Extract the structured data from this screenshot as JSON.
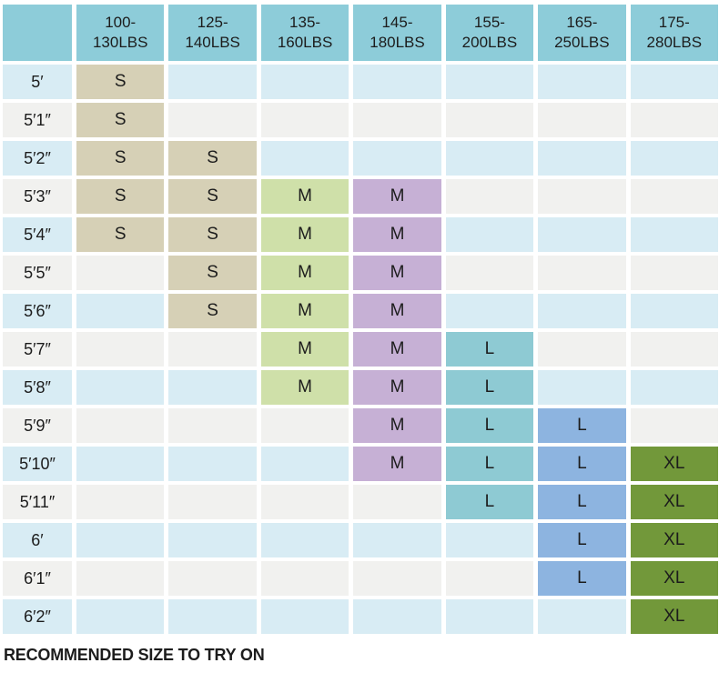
{
  "chart_data": {
    "type": "table",
    "title": "",
    "corner_label": "",
    "columns": [
      "100-130LBS",
      "125-140LBS",
      "135-160LBS",
      "145-180LBS",
      "155-200LBS",
      "165-250LBS",
      "175-280LBS"
    ],
    "rows": [
      {
        "label": "5′",
        "cells": [
          "S",
          "",
          "",
          "",
          "",
          "",
          ""
        ]
      },
      {
        "label": "5′1″",
        "cells": [
          "S",
          "",
          "",
          "",
          "",
          "",
          ""
        ]
      },
      {
        "label": "5′2″",
        "cells": [
          "S",
          "S",
          "",
          "",
          "",
          "",
          ""
        ]
      },
      {
        "label": "5′3″",
        "cells": [
          "S",
          "S",
          "M",
          "M",
          "",
          "",
          ""
        ]
      },
      {
        "label": "5′4″",
        "cells": [
          "S",
          "S",
          "M",
          "M",
          "",
          "",
          ""
        ]
      },
      {
        "label": "5′5″",
        "cells": [
          "",
          "S",
          "M",
          "M",
          "",
          "",
          ""
        ]
      },
      {
        "label": "5′6″",
        "cells": [
          "",
          "S",
          "M",
          "M",
          "",
          "",
          ""
        ]
      },
      {
        "label": "5′7″",
        "cells": [
          "",
          "",
          "M",
          "M",
          "L",
          "",
          ""
        ]
      },
      {
        "label": "5′8″",
        "cells": [
          "",
          "",
          "M",
          "M",
          "L",
          "",
          ""
        ]
      },
      {
        "label": "5′9″",
        "cells": [
          "",
          "",
          "",
          "M",
          "L",
          "L",
          ""
        ]
      },
      {
        "label": "5′10″",
        "cells": [
          "",
          "",
          "",
          "M",
          "L",
          "L",
          "XL"
        ]
      },
      {
        "label": "5′11″",
        "cells": [
          "",
          "",
          "",
          "",
          "L",
          "L",
          "XL"
        ]
      },
      {
        "label": "6′",
        "cells": [
          "",
          "",
          "",
          "",
          "",
          "L",
          "XL"
        ]
      },
      {
        "label": "6′1″",
        "cells": [
          "",
          "",
          "",
          "",
          "",
          "L",
          "XL"
        ]
      },
      {
        "label": "6′2″",
        "cells": [
          "",
          "",
          "",
          "",
          "",
          "",
          "XL"
        ]
      }
    ],
    "footer_note": "RECOMMENDED SIZE TO TRY ON",
    "legend_position": "none",
    "grid": "white-gaps"
  },
  "colors": {
    "header_bg": "#8dccd9",
    "row_alt_blue": "#d8ecf4",
    "row_alt_gray": "#f1f1ef",
    "column_fill": [
      "#d6d0b6",
      "#d6d0b6",
      "#cfe0a9",
      "#c6b0d5",
      "#8ecad3",
      "#8db4e0",
      "#72983a"
    ],
    "text": "#1c1c1c"
  }
}
